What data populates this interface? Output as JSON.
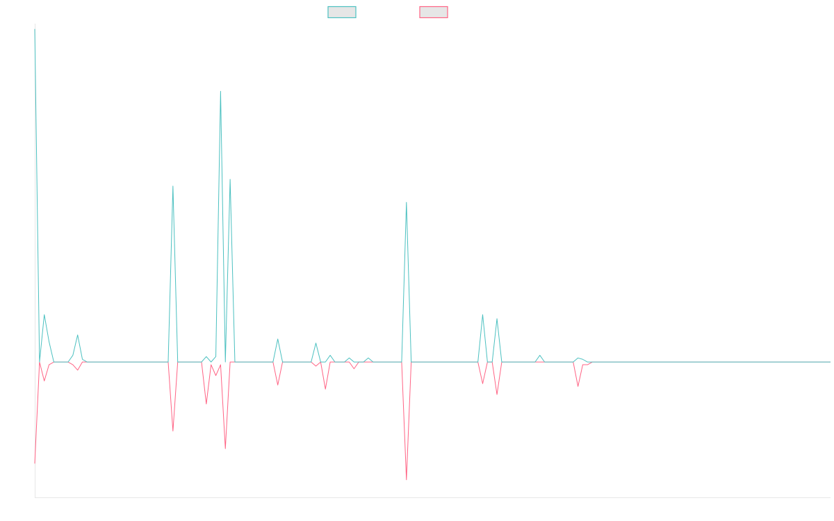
{
  "chart_data": {
    "type": "line",
    "title": "",
    "xlabel": "",
    "ylabel": "",
    "x_count": 168,
    "ylim": [
      -100,
      250
    ],
    "grid": false,
    "legend_placement": "top-center",
    "series": [
      {
        "color": "#4bc0c0",
        "fill": "#e6e6e6",
        "points": [
          [
            0,
            246
          ],
          [
            1,
            0
          ],
          [
            2,
            35
          ],
          [
            3,
            15
          ],
          [
            4,
            0
          ],
          [
            7,
            0
          ],
          [
            8,
            5
          ],
          [
            9,
            20
          ],
          [
            10,
            2
          ],
          [
            11,
            0
          ],
          [
            12,
            0
          ],
          [
            13,
            0
          ],
          [
            14,
            0
          ],
          [
            15,
            0
          ],
          [
            28,
            0
          ],
          [
            29,
            130
          ],
          [
            30,
            0
          ],
          [
            35,
            0
          ],
          [
            36,
            4
          ],
          [
            37,
            0
          ],
          [
            38,
            4
          ],
          [
            39,
            200
          ],
          [
            40,
            0
          ],
          [
            41,
            135
          ],
          [
            42,
            0
          ],
          [
            43,
            0
          ],
          [
            50,
            0
          ],
          [
            51,
            17
          ],
          [
            52,
            0
          ],
          [
            53,
            0
          ],
          [
            54,
            0
          ],
          [
            55,
            0
          ],
          [
            58,
            0
          ],
          [
            59,
            14
          ],
          [
            60,
            0
          ],
          [
            61,
            0
          ],
          [
            62,
            5
          ],
          [
            63,
            0
          ],
          [
            64,
            0
          ],
          [
            65,
            0
          ],
          [
            66,
            3
          ],
          [
            67,
            0
          ],
          [
            68,
            0
          ],
          [
            69,
            0
          ],
          [
            70,
            3
          ],
          [
            71,
            0
          ],
          [
            72,
            0
          ],
          [
            77,
            0
          ],
          [
            78,
            118
          ],
          [
            79,
            0
          ],
          [
            93,
            0
          ],
          [
            94,
            35
          ],
          [
            95,
            0
          ],
          [
            96,
            0
          ],
          [
            97,
            32
          ],
          [
            98,
            0
          ],
          [
            105,
            0
          ],
          [
            106,
            5
          ],
          [
            107,
            0
          ],
          [
            112,
            0
          ],
          [
            113,
            0
          ],
          [
            114,
            3
          ],
          [
            115,
            2
          ],
          [
            116,
            0
          ],
          [
            117,
            0
          ],
          [
            118,
            0
          ],
          [
            167,
            0
          ]
        ]
      },
      {
        "color": "#ff6384",
        "fill": "#e6e6e6",
        "points": [
          [
            0,
            -75
          ],
          [
            1,
            0
          ],
          [
            2,
            -14
          ],
          [
            3,
            -2
          ],
          [
            4,
            0
          ],
          [
            7,
            0
          ],
          [
            8,
            -2
          ],
          [
            9,
            -6
          ],
          [
            10,
            0
          ],
          [
            28,
            0
          ],
          [
            29,
            -51
          ],
          [
            30,
            0
          ],
          [
            35,
            0
          ],
          [
            36,
            -31
          ],
          [
            37,
            -2
          ],
          [
            38,
            -10
          ],
          [
            39,
            -2
          ],
          [
            40,
            -64
          ],
          [
            41,
            0
          ],
          [
            42,
            0
          ],
          [
            50,
            0
          ],
          [
            51,
            -17
          ],
          [
            52,
            0
          ],
          [
            53,
            0
          ],
          [
            54,
            0
          ],
          [
            55,
            0
          ],
          [
            58,
            0
          ],
          [
            59,
            -3
          ],
          [
            60,
            0
          ],
          [
            61,
            -20
          ],
          [
            62,
            0
          ],
          [
            66,
            0
          ],
          [
            67,
            -5
          ],
          [
            68,
            0
          ],
          [
            77,
            0
          ],
          [
            78,
            -87
          ],
          [
            79,
            0
          ],
          [
            93,
            0
          ],
          [
            94,
            -16
          ],
          [
            95,
            0
          ],
          [
            96,
            0
          ],
          [
            97,
            -24
          ],
          [
            98,
            0
          ],
          [
            112,
            0
          ],
          [
            113,
            0
          ],
          [
            114,
            -18
          ],
          [
            115,
            -2
          ],
          [
            116,
            -2
          ],
          [
            117,
            0
          ],
          [
            118,
            0
          ],
          [
            119,
            0
          ],
          [
            167,
            0
          ]
        ]
      }
    ]
  }
}
